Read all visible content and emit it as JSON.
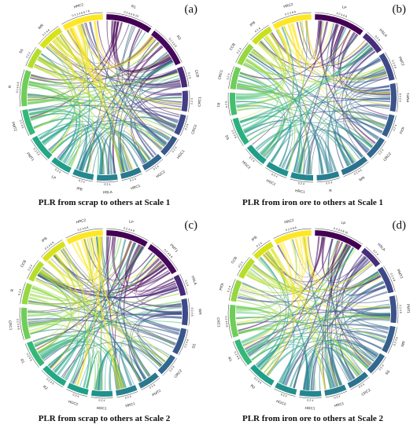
{
  "palette": {
    "viridis": [
      "#440154",
      "#482878",
      "#3e4989",
      "#31688e",
      "#26828e",
      "#1f9e89",
      "#35b779",
      "#6ece58",
      "#b5de2b",
      "#fde725"
    ],
    "chord_opacity": 0.55
  },
  "panels": [
    {
      "id": "a",
      "letter": "(a)",
      "caption": "PLR from scrap to others at Scale 1",
      "segments": [
        {
          "label": "R1",
          "ticks": "0 2 4 6 8 10",
          "weight": 9,
          "color": "#440154"
        },
        {
          "label": "R2",
          "ticks": "0 2 4 6 8",
          "weight": 8,
          "color": "#46085c"
        },
        {
          "label": "CCB",
          "ticks": "0 2 4",
          "weight": 4,
          "color": "#482878"
        },
        {
          "label": "CRC1",
          "ticks": "0 2 4",
          "weight": 4,
          "color": "#433e85"
        },
        {
          "label": "CRC2",
          "ticks": "0 2 4",
          "weight": 4,
          "color": "#3e4989"
        },
        {
          "label": "HGC1",
          "ticks": "0 2 4",
          "weight": 4,
          "color": "#38588c"
        },
        {
          "label": "HGC2",
          "ticks": "0 2 4",
          "weight": 4,
          "color": "#31688e"
        },
        {
          "label": "HRC1",
          "ticks": "0 2 4",
          "weight": 4,
          "color": "#2a788e"
        },
        {
          "label": "HSLA",
          "ticks": "0 2 4",
          "weight": 4,
          "color": "#26828e"
        },
        {
          "label": "IPB",
          "ticks": "0 2 4",
          "weight": 4,
          "color": "#23898e"
        },
        {
          "label": "LP",
          "ticks": "0 2 4",
          "weight": 4,
          "color": "#1f9e89"
        },
        {
          "label": "PMT1",
          "ticks": "0 2 4 6",
          "weight": 5,
          "color": "#22a884"
        },
        {
          "label": "PMT2",
          "ticks": "0 2 4 6",
          "weight": 5,
          "color": "#35b779"
        },
        {
          "label": "R",
          "ticks": "0 2 4 6 8",
          "weight": 7,
          "color": "#6ece58"
        },
        {
          "label": "SS",
          "ticks": "0 2 4",
          "weight": 4,
          "color": "#b5de2b"
        },
        {
          "label": "WR",
          "ticks": "0 2 4 6",
          "weight": 5,
          "color": "#d8e219"
        },
        {
          "label": "HRC2",
          "ticks": "0 2 3 4 5 6 7 8",
          "weight": 8,
          "color": "#fde725"
        }
      ]
    },
    {
      "id": "b",
      "letter": "(b)",
      "caption": "PLR from iron ore to others at Scale 1",
      "segments": [
        {
          "label": "LP",
          "ticks": "0 2 4 6 8",
          "weight": 9,
          "color": "#440154"
        },
        {
          "label": "HSLA",
          "ticks": "0 2 4",
          "weight": 4,
          "color": "#472d7b"
        },
        {
          "label": "PMT2",
          "ticks": "0 2 4 6",
          "weight": 5,
          "color": "#3e4989"
        },
        {
          "label": "PMT1",
          "ticks": "0 2 4 6",
          "weight": 5,
          "color": "#3b528b"
        },
        {
          "label": "PIOI",
          "ticks": "0 2 4",
          "weight": 4,
          "color": "#35608d"
        },
        {
          "label": "CRC2",
          "ticks": "0 2 4",
          "weight": 4,
          "color": "#31688e"
        },
        {
          "label": "WR",
          "ticks": "0 2 4 6",
          "weight": 5,
          "color": "#2c728e"
        },
        {
          "label": "R",
          "ticks": "0 2 4",
          "weight": 4,
          "color": "#287d8e"
        },
        {
          "label": "HRC1",
          "ticks": "0 2 4",
          "weight": 4,
          "color": "#24868e"
        },
        {
          "label": "HGC1",
          "ticks": "0 2 4",
          "weight": 4,
          "color": "#21918c"
        },
        {
          "label": "HGC2",
          "ticks": "0 2 4",
          "weight": 4,
          "color": "#1f9e89"
        },
        {
          "label": "SS",
          "ticks": "0 2 4 6",
          "weight": 5,
          "color": "#2ab07f"
        },
        {
          "label": "R1",
          "ticks": "0 2 4",
          "weight": 4,
          "color": "#44bf70"
        },
        {
          "label": "CRC1",
          "ticks": "0 2 4",
          "weight": 4,
          "color": "#6ece58"
        },
        {
          "label": "CCB",
          "ticks": "0 2 4",
          "weight": 4,
          "color": "#95d840"
        },
        {
          "label": "IPB",
          "ticks": "0 2 4",
          "weight": 4,
          "color": "#c8e020"
        },
        {
          "label": "HRC2",
          "ticks": "0 2 4 6 8",
          "weight": 7,
          "color": "#fde725"
        }
      ]
    },
    {
      "id": "c",
      "letter": "(c)",
      "caption": "PLR from scrap to others at Scale 2",
      "segments": [
        {
          "label": "LP",
          "ticks": "0 2 4 6 8",
          "weight": 8,
          "color": "#440154"
        },
        {
          "label": "PMT1",
          "ticks": "0 2 4 6 8",
          "weight": 7,
          "color": "#46085c"
        },
        {
          "label": "HSLA",
          "ticks": "0 2 4",
          "weight": 4,
          "color": "#482878"
        },
        {
          "label": "WR",
          "ticks": "0 2 4 6",
          "weight": 5,
          "color": "#3e4989"
        },
        {
          "label": "SS",
          "ticks": "0 2 4 6",
          "weight": 5,
          "color": "#38588c"
        },
        {
          "label": "CRC2",
          "ticks": "0 2 4",
          "weight": 4,
          "color": "#31688e"
        },
        {
          "label": "PMT2",
          "ticks": "0 2 4",
          "weight": 4,
          "color": "#2a788e"
        },
        {
          "label": "HRC1",
          "ticks": "0 2 4",
          "weight": 4,
          "color": "#26828e"
        },
        {
          "label": "HGC1",
          "ticks": "0 2 4",
          "weight": 4,
          "color": "#21918c"
        },
        {
          "label": "HGC2",
          "ticks": "0 2 4",
          "weight": 4,
          "color": "#1f9e89"
        },
        {
          "label": "R2",
          "ticks": "0 2 4 6",
          "weight": 5,
          "color": "#22a884"
        },
        {
          "label": "R1",
          "ticks": "0 2 4 6",
          "weight": 5,
          "color": "#35b779"
        },
        {
          "label": "CRC1",
          "ticks": "0 2 4 6 8",
          "weight": 6,
          "color": "#6ece58"
        },
        {
          "label": "R",
          "ticks": "0 2 4",
          "weight": 4,
          "color": "#95d840"
        },
        {
          "label": "CCB",
          "ticks": "0 2 4",
          "weight": 4,
          "color": "#b5de2b"
        },
        {
          "label": "IPB",
          "ticks": "0 2 4 6 8",
          "weight": 5,
          "color": "#d8e219"
        },
        {
          "label": "HRC2",
          "ticks": "0 2 4 6 8",
          "weight": 7,
          "color": "#fde725"
        }
      ]
    },
    {
      "id": "d",
      "letter": "(d)",
      "caption": "PLR from iron ore to others at Scale 2",
      "segments": [
        {
          "label": "LP",
          "ticks": "0 2 4 6 8 10",
          "weight": 9,
          "color": "#440154"
        },
        {
          "label": "HSLA",
          "ticks": "0 2 4",
          "weight": 4,
          "color": "#472d7b"
        },
        {
          "label": "PMT2",
          "ticks": "0 2 4 6",
          "weight": 5,
          "color": "#3e4989"
        },
        {
          "label": "PMT1",
          "ticks": "0 2 4 6",
          "weight": 5,
          "color": "#3b528b"
        },
        {
          "label": "WR",
          "ticks": "0 2 4 6",
          "weight": 5,
          "color": "#35608d"
        },
        {
          "label": "SS",
          "ticks": "0 2 4",
          "weight": 4,
          "color": "#31688e"
        },
        {
          "label": "CRC2",
          "ticks": "0 2 4",
          "weight": 4,
          "color": "#2c728e"
        },
        {
          "label": "HRC1",
          "ticks": "0 2 4",
          "weight": 4,
          "color": "#287d8e"
        },
        {
          "label": "HGC1",
          "ticks": "0 2 4",
          "weight": 4,
          "color": "#24868e"
        },
        {
          "label": "HGC2",
          "ticks": "0 2 4",
          "weight": 4,
          "color": "#21918c"
        },
        {
          "label": "R2",
          "ticks": "0 2 4 6",
          "weight": 5,
          "color": "#1f9e89"
        },
        {
          "label": "R1",
          "ticks": "0 2 4 6",
          "weight": 5,
          "color": "#35b779"
        },
        {
          "label": "CRC1",
          "ticks": "0 2 4 6 8",
          "weight": 6,
          "color": "#6ece58"
        },
        {
          "label": "PIOI",
          "ticks": "0 2 4",
          "weight": 4,
          "color": "#95d840"
        },
        {
          "label": "CCB",
          "ticks": "0 2 4",
          "weight": 4,
          "color": "#b5de2b"
        },
        {
          "label": "IPB",
          "ticks": "0 2 4",
          "weight": 4,
          "color": "#d8e219"
        },
        {
          "label": "HRC2",
          "ticks": "0 2 4 6 8",
          "weight": 7,
          "color": "#fde725"
        }
      ]
    }
  ]
}
